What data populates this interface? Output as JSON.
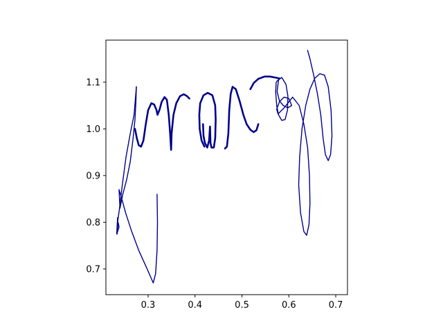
{
  "chart_data": {
    "type": "line",
    "title": "",
    "xlabel": "",
    "ylabel": "",
    "xlim": [
      0.21,
      0.725
    ],
    "ylim": [
      0.645,
      1.19
    ],
    "x_ticks": [
      {
        "value": 0.3,
        "label": "0.3"
      },
      {
        "value": 0.4,
        "label": "0.4"
      },
      {
        "value": 0.5,
        "label": "0.5"
      },
      {
        "value": 0.6,
        "label": "0.6"
      },
      {
        "value": 0.7,
        "label": "0.7"
      }
    ],
    "y_ticks": [
      {
        "value": 0.7,
        "label": "0.7"
      },
      {
        "value": 0.8,
        "label": "0.8"
      },
      {
        "value": 0.9,
        "label": "0.9"
      },
      {
        "value": 1.0,
        "label": "1.0"
      },
      {
        "value": 1.1,
        "label": "1.1"
      }
    ],
    "grid": false,
    "line_color": "#00008b",
    "strokes": [
      {
        "id": "stroke-descender-left",
        "weight": "thin",
        "points": [
          [
            0.319,
            0.86
          ],
          [
            0.32,
            0.8
          ],
          [
            0.319,
            0.74
          ],
          [
            0.316,
            0.69
          ],
          [
            0.311,
            0.67
          ],
          [
            0.298,
            0.7
          ],
          [
            0.28,
            0.74
          ],
          [
            0.265,
            0.78
          ],
          [
            0.252,
            0.82
          ],
          [
            0.244,
            0.85
          ],
          [
            0.238,
            0.87
          ],
          [
            0.24,
            0.83
          ],
          [
            0.246,
            0.86
          ],
          [
            0.254,
            0.89
          ],
          [
            0.262,
            0.93
          ],
          [
            0.268,
            0.98
          ],
          [
            0.272,
            1.02
          ],
          [
            0.274,
            1.06
          ],
          [
            0.275,
            1.09
          ]
        ]
      },
      {
        "id": "stroke-hook",
        "weight": "thin",
        "points": [
          [
            0.275,
            1.09
          ],
          [
            0.27,
            1.03
          ],
          [
            0.262,
            0.99
          ],
          [
            0.253,
            0.94
          ],
          [
            0.245,
            0.88
          ],
          [
            0.239,
            0.83
          ],
          [
            0.235,
            0.8
          ],
          [
            0.234,
            0.775
          ],
          [
            0.236,
            0.8
          ],
          [
            0.238,
            0.79
          ],
          [
            0.235,
            0.78
          ],
          [
            0.233,
            0.775
          ],
          [
            0.235,
            0.81
          ]
        ]
      },
      {
        "id": "stroke-m",
        "weight": "bold",
        "points": [
          [
            0.272,
            1.0
          ],
          [
            0.276,
            0.98
          ],
          [
            0.28,
            0.965
          ],
          [
            0.285,
            0.962
          ],
          [
            0.29,
            0.975
          ],
          [
            0.295,
            1.01
          ],
          [
            0.3,
            1.04
          ],
          [
            0.307,
            1.055
          ],
          [
            0.313,
            1.052
          ],
          [
            0.318,
            1.04
          ],
          [
            0.32,
            1.03
          ],
          [
            0.324,
            1.04
          ],
          [
            0.329,
            1.058
          ],
          [
            0.335,
            1.068
          ],
          [
            0.34,
            1.062
          ],
          [
            0.344,
            1.03
          ],
          [
            0.347,
            0.99
          ],
          [
            0.349,
            0.955
          ],
          [
            0.35,
            0.99
          ],
          [
            0.354,
            1.03
          ],
          [
            0.36,
            1.055
          ],
          [
            0.368,
            1.07
          ],
          [
            0.376,
            1.074
          ],
          [
            0.383,
            1.07
          ],
          [
            0.388,
            1.065
          ]
        ]
      },
      {
        "id": "stroke-o",
        "weight": "bold",
        "points": [
          [
            0.417,
            1.01
          ],
          [
            0.418,
            0.985
          ],
          [
            0.421,
            0.97
          ],
          [
            0.426,
            0.96
          ],
          [
            0.43,
            0.975
          ],
          [
            0.432,
            1.005
          ],
          [
            0.433,
            0.97
          ],
          [
            0.435,
            0.96
          ],
          [
            0.44,
            0.96
          ],
          [
            0.443,
            0.98
          ],
          [
            0.444,
            1.02
          ],
          [
            0.443,
            1.05
          ],
          [
            0.437,
            1.072
          ],
          [
            0.427,
            1.077
          ],
          [
            0.418,
            1.072
          ],
          [
            0.411,
            1.055
          ],
          [
            0.409,
            1.03
          ],
          [
            0.41,
            1.0
          ],
          [
            0.414,
            0.975
          ],
          [
            0.42,
            0.962
          ]
        ]
      },
      {
        "id": "stroke-n",
        "weight": "bold",
        "points": [
          [
            0.464,
            0.958
          ],
          [
            0.468,
            0.962
          ],
          [
            0.471,
            0.99
          ],
          [
            0.473,
            1.04
          ],
          [
            0.476,
            1.075
          ],
          [
            0.48,
            1.09
          ],
          [
            0.487,
            1.085
          ],
          [
            0.495,
            1.06
          ],
          [
            0.503,
            1.03
          ],
          [
            0.51,
            1.01
          ],
          [
            0.518,
            0.998
          ],
          [
            0.525,
            0.993
          ],
          [
            0.531,
            0.997
          ],
          [
            0.535,
            1.01
          ]
        ]
      },
      {
        "id": "stroke-swirl-top",
        "weight": "bold",
        "points": [
          [
            0.518,
            1.085
          ],
          [
            0.525,
            1.098
          ],
          [
            0.535,
            1.107
          ],
          [
            0.548,
            1.112
          ],
          [
            0.56,
            1.112
          ],
          [
            0.57,
            1.11
          ],
          [
            0.58,
            1.108
          ]
        ]
      },
      {
        "id": "stroke-loops-right",
        "weight": "thin",
        "points": [
          [
            0.58,
            1.108
          ],
          [
            0.573,
            1.1
          ],
          [
            0.572,
            1.08
          ],
          [
            0.574,
            1.05
          ],
          [
            0.578,
            1.03
          ],
          [
            0.585,
            1.018
          ],
          [
            0.592,
            1.02
          ],
          [
            0.597,
            1.04
          ],
          [
            0.598,
            1.07
          ],
          [
            0.594,
            1.095
          ],
          [
            0.585,
            1.11
          ],
          [
            0.578,
            1.105
          ],
          [
            0.575,
            1.08
          ],
          [
            0.58,
            1.06
          ],
          [
            0.588,
            1.05
          ],
          [
            0.598,
            1.045
          ],
          [
            0.606,
            1.05
          ],
          [
            0.6,
            1.065
          ],
          [
            0.59,
            1.068
          ],
          [
            0.58,
            1.058
          ],
          [
            0.574,
            1.042
          ],
          [
            0.577,
            1.032
          ],
          [
            0.59,
            1.045
          ],
          [
            0.608,
            1.068
          ],
          [
            0.622,
            1.05
          ],
          [
            0.632,
            1.01
          ],
          [
            0.64,
            0.96
          ],
          [
            0.644,
            0.9
          ],
          [
            0.645,
            0.84
          ],
          [
            0.643,
            0.795
          ],
          [
            0.638,
            0.772
          ],
          [
            0.632,
            0.78
          ],
          [
            0.625,
            0.82
          ],
          [
            0.621,
            0.88
          ],
          [
            0.623,
            0.94
          ],
          [
            0.628,
            1.0
          ],
          [
            0.636,
            1.05
          ],
          [
            0.645,
            1.085
          ],
          [
            0.655,
            1.108
          ],
          [
            0.666,
            1.118
          ],
          [
            0.676,
            1.115
          ],
          [
            0.684,
            1.09
          ],
          [
            0.69,
            1.04
          ],
          [
            0.692,
            0.985
          ],
          [
            0.689,
            0.945
          ],
          [
            0.684,
            0.932
          ],
          [
            0.678,
            0.945
          ],
          [
            0.673,
            0.98
          ],
          [
            0.668,
            1.03
          ],
          [
            0.661,
            1.075
          ],
          [
            0.653,
            1.115
          ],
          [
            0.645,
            1.15
          ],
          [
            0.64,
            1.168
          ]
        ]
      }
    ]
  }
}
